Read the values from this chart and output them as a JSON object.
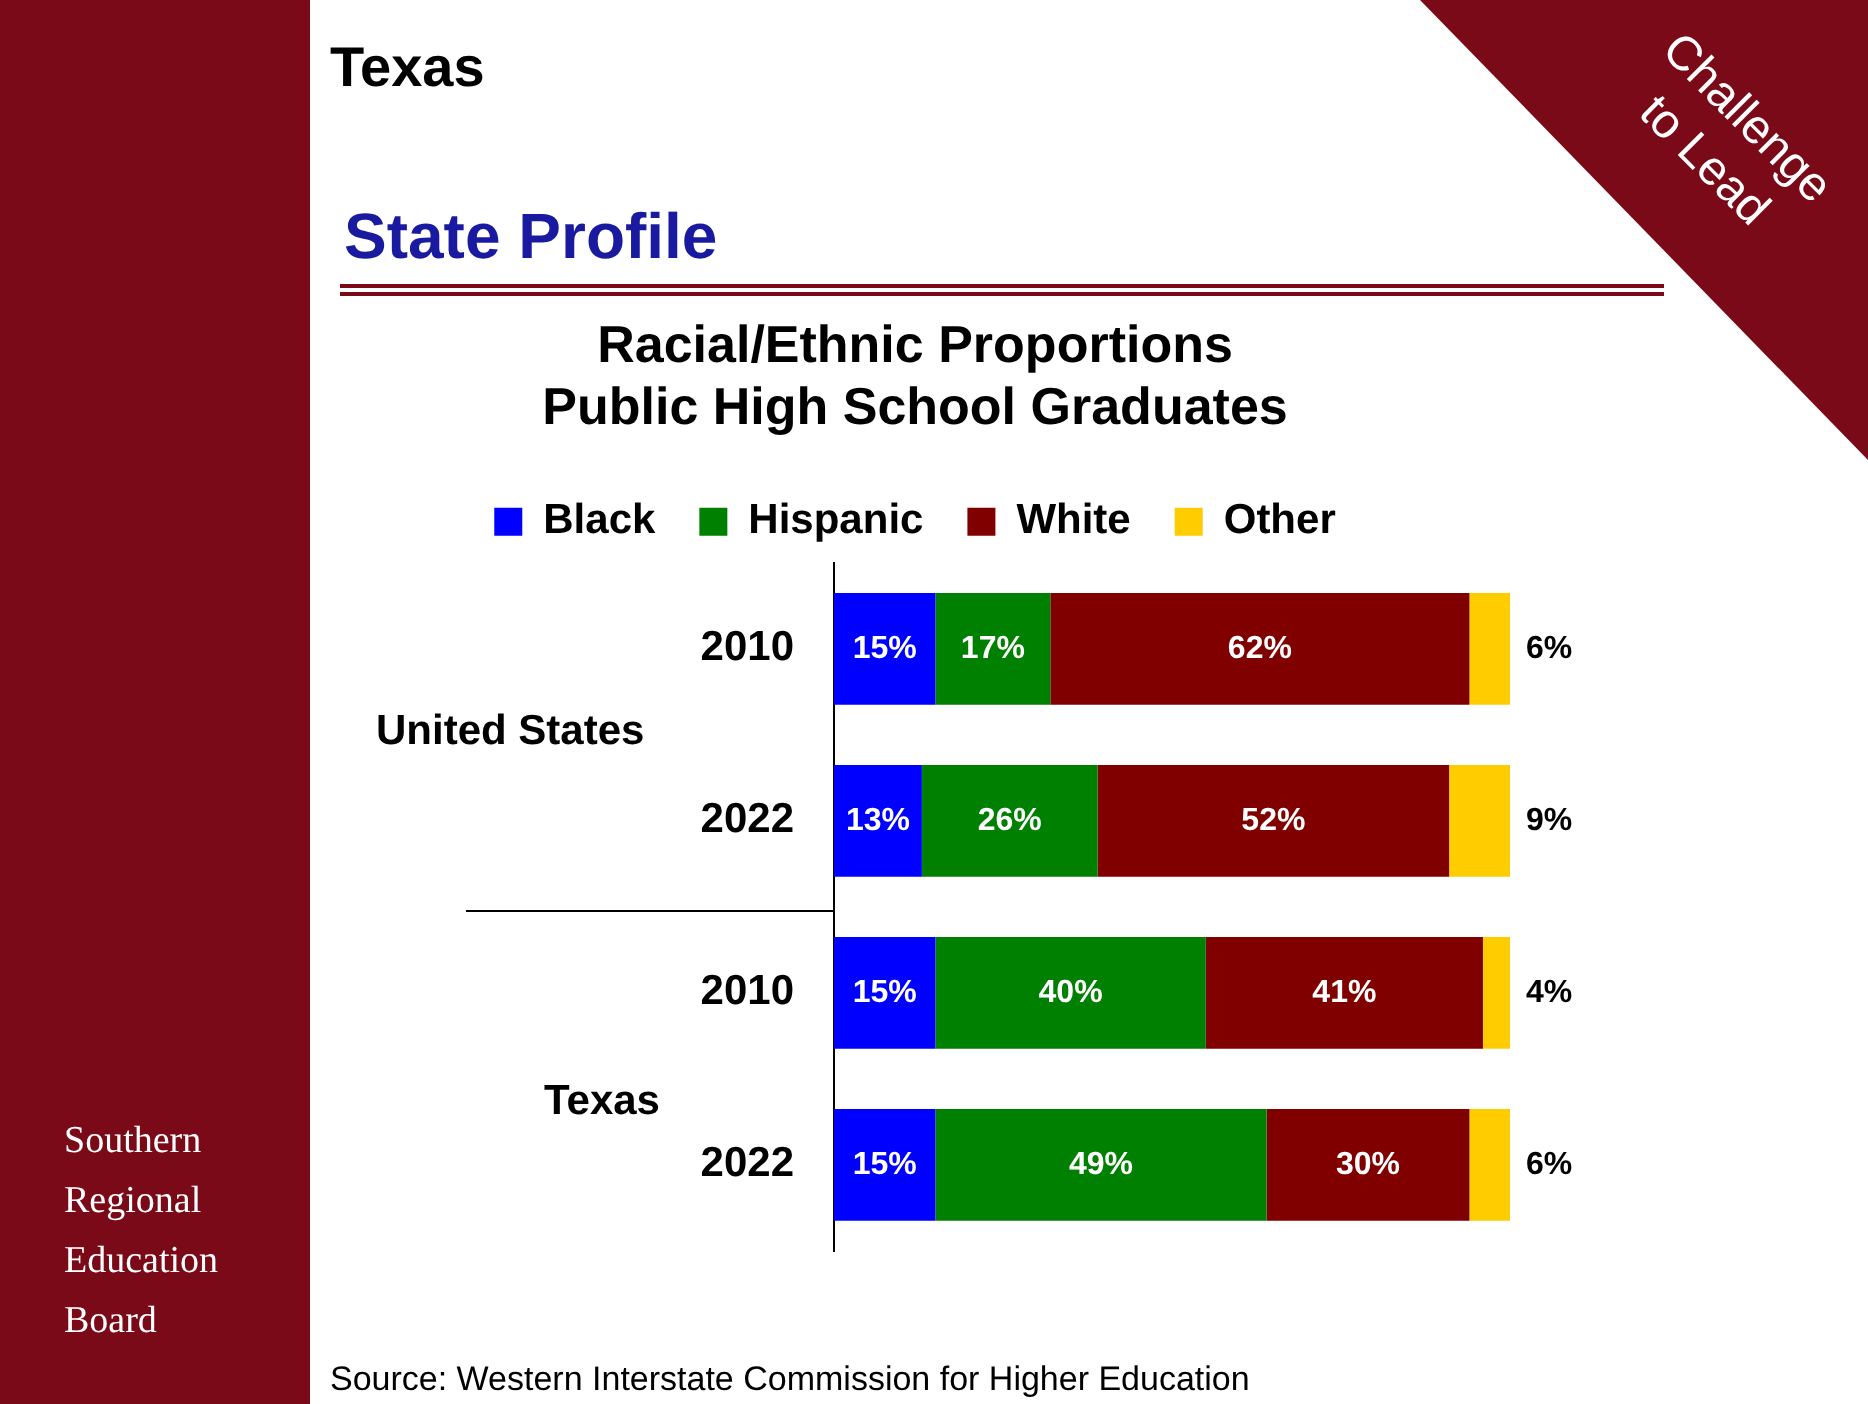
{
  "chart_data": {
    "type": "bar",
    "orientation": "horizontal",
    "stacked": true,
    "title": [
      "Racial/Ethnic Proportions",
      "Public High School Graduates"
    ],
    "categories": [
      "2010",
      "2022",
      "2010",
      "2022"
    ],
    "series": [
      {
        "name": "Black",
        "color": "#0000ff",
        "values": [
          15,
          13,
          15,
          15
        ],
        "value_labels": [
          "15%",
          "13%",
          "15%",
          "15%"
        ]
      },
      {
        "name": "Hispanic",
        "color": "#008000",
        "values": [
          17,
          26,
          40,
          49
        ],
        "value_labels": [
          "17%",
          "26%",
          "40%",
          "49%"
        ]
      },
      {
        "name": "White",
        "color": "#800000",
        "values": [
          62,
          52,
          41,
          30
        ],
        "value_labels": [
          "62%",
          "52%",
          "41%",
          "30%"
        ]
      },
      {
        "name": "Other",
        "color": "#ffcc00",
        "values": [
          6,
          9,
          4,
          6
        ],
        "value_labels": [
          "6%",
          "9%",
          "4%",
          "6%"
        ]
      }
    ],
    "legend": "top",
    "grid": false,
    "annotations": [
      "Texas",
      "State Profile",
      "Challenge to Lead",
      "Southern Regional Education Board",
      "Source: Western Interstate Commission for Higher Education",
      "United States",
      "Texas"
    ]
  }
}
